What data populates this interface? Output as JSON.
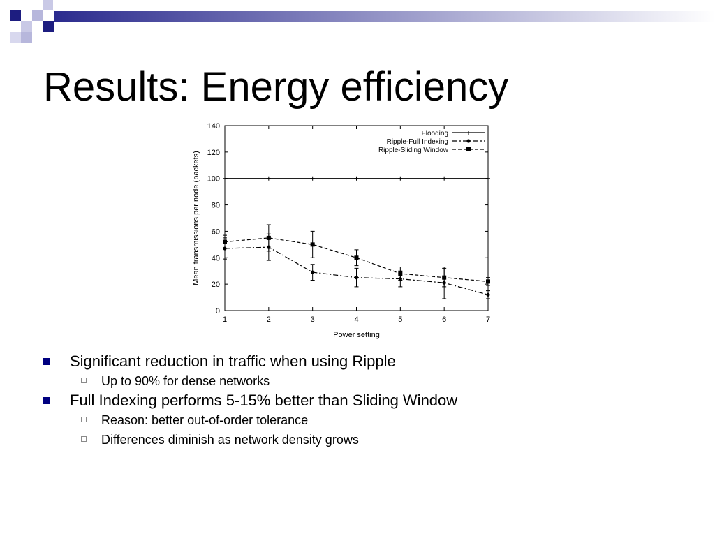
{
  "slide": {
    "title": "Results: Energy efficiency",
    "accent_color": "#2b2b8e",
    "bullets": [
      {
        "text": "Significant reduction in traffic when using Ripple",
        "sub": [
          "Up to 90% for dense networks"
        ]
      },
      {
        "text": "Full Indexing performs 5-15% better than Sliding Window",
        "sub": [
          "Reason: better out-of-order tolerance",
          "Differences diminish as network density grows"
        ]
      }
    ]
  },
  "chart_data": {
    "type": "line",
    "title": "",
    "xlabel": "Power setting",
    "ylabel": "Mean transmissions per node (packets)",
    "x": [
      1,
      2,
      3,
      4,
      5,
      6,
      7
    ],
    "xticks": [
      "1",
      "2",
      "3",
      "4",
      "5",
      "6",
      "7"
    ],
    "yticks": [
      "0",
      "20",
      "40",
      "60",
      "80",
      "100",
      "120",
      "140"
    ],
    "xlim": [
      1,
      7
    ],
    "ylim": [
      0,
      140
    ],
    "grid": false,
    "legend_position": "top-right",
    "series": [
      {
        "name": "Flooding",
        "values": [
          100,
          100,
          100,
          100,
          100,
          100,
          100
        ],
        "err": [
          0,
          0,
          0,
          0,
          0,
          0,
          0
        ],
        "marker": "plus",
        "dash": ""
      },
      {
        "name": "Ripple-Full Indexing",
        "values": [
          47,
          48,
          29,
          25,
          24,
          21,
          12
        ],
        "err": [
          8,
          10,
          6,
          7,
          6,
          12,
          3
        ],
        "marker": "dot",
        "dash": "7,3,2,3"
      },
      {
        "name": "Ripple-Sliding Window",
        "values": [
          52,
          55,
          50,
          40,
          28,
          25,
          22
        ],
        "err": [
          5,
          10,
          10,
          6,
          5,
          7,
          3
        ],
        "marker": "square",
        "dash": "5,3"
      }
    ]
  }
}
